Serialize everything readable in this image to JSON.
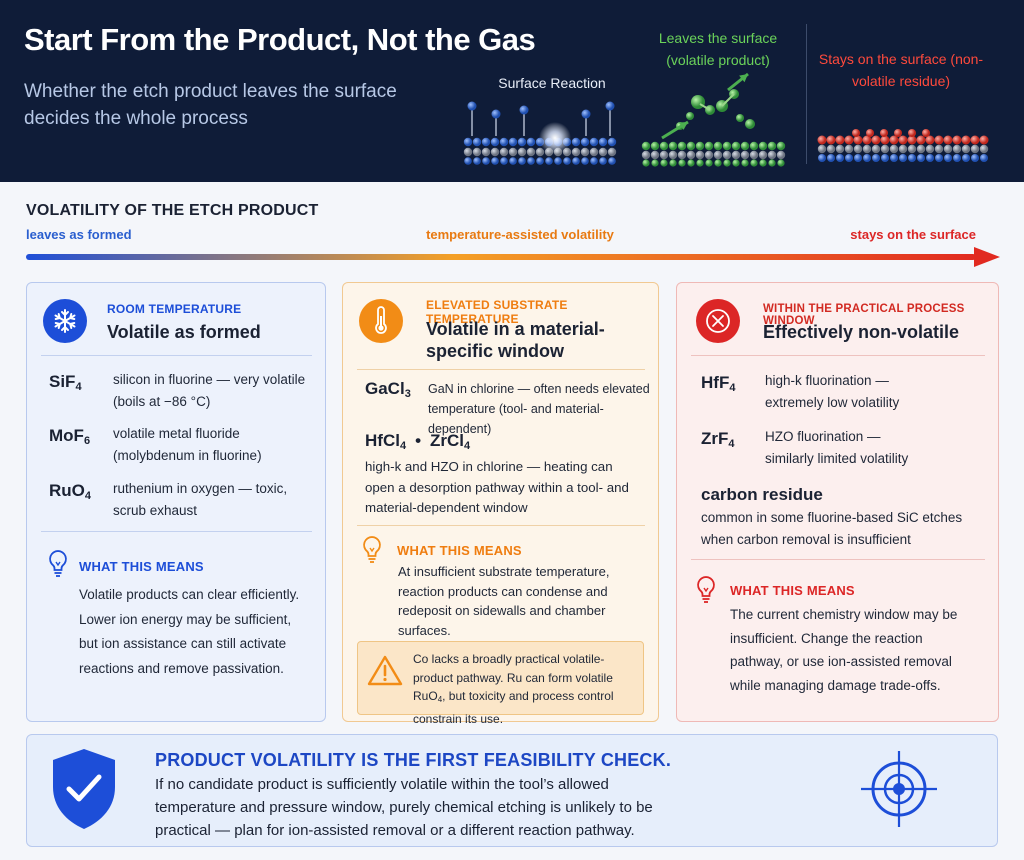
{
  "header": {
    "title": "Start From the Product, Not the Gas",
    "subtitle": "Whether the etch product leaves the surface decides the whole process",
    "illustrations": [
      {
        "caption": "Surface Reaction"
      },
      {
        "caption": "Leaves the surface (volatile product)"
      },
      {
        "caption": "Stays on the surface (non-volatile residue)"
      }
    ]
  },
  "scale": {
    "title": "VOLATILITY OF THE ETCH PRODUCT",
    "left_label": "leaves as formed",
    "mid_label": "temperature-assisted volatility",
    "right_label": "stays on the surface"
  },
  "cards": [
    {
      "icon": "snowflake-icon",
      "kicker": "ROOM TEMPERATURE",
      "title": "Volatile as formed",
      "products": [
        {
          "base": "SiF",
          "sub": "4",
          "desc": "silicon in fluorine — very volatile (boils at −86 °C)"
        },
        {
          "base": "MoF",
          "sub": "6",
          "desc": "volatile metal fluoride (molybdenum in fluorine)"
        },
        {
          "base": "RuO",
          "sub": "4",
          "desc": "ruthenium in oxygen — toxic, scrub exhaust"
        }
      ],
      "what_title": "WHAT THIS MEANS",
      "what_body": "Volatile products can clear efficiently. Lower ion energy may be sufficient, but ion assistance can still activate reactions and remove passivation."
    },
    {
      "icon": "thermometer-icon",
      "kicker": "ELEVATED SUBSTRATE TEMPERATURE",
      "title": "Volatile in a material-specific window",
      "products": [
        {
          "base": "GaCl",
          "sub": "3",
          "desc": "GaN in chlorine — often needs elevated temperature (tool- and material-dependent)"
        },
        {
          "base": "HfCl",
          "sub": "4",
          "sep": "•",
          "base2": "ZrCl",
          "sub2": "4",
          "desc": "high-k and HZO in chlorine — heating can open a desorption pathway within a tool- and material-dependent window"
        }
      ],
      "what_title": "WHAT THIS MEANS",
      "what_body": "At insufficient substrate temperature, reaction products can condense and redeposit on sidewalls and chamber surfaces.",
      "note": {
        "icon": "warning-icon",
        "pre": "Co lacks a broadly practical volatile-product pathway. Ru can form volatile RuO",
        "sub": "4",
        "post": ", but toxicity and process control constrain its use."
      }
    },
    {
      "icon": "no-symbol-icon",
      "kicker": "WITHIN THE PRACTICAL PROCESS WINDOW",
      "title": "Effectively non-volatile",
      "products": [
        {
          "base": "HfF",
          "sub": "4",
          "desc": "high-k fluorination — extremely low volatility"
        },
        {
          "base": "ZrF",
          "sub": "4",
          "desc": "HZO fluorination — similarly limited volatility"
        },
        {
          "base": "carbon residue",
          "sub": "",
          "desc": "common in some fluorine-based SiC etches when carbon removal is insufficient"
        }
      ],
      "what_title": "WHAT THIS MEANS",
      "what_body": "The current chemistry window may be insufficient. Change the reaction pathway, or use ion-assisted removal while managing damage trade-offs."
    }
  ],
  "bottom": {
    "icon": "shield-check-icon",
    "title": "PRODUCT VOLATILITY IS THE FIRST FEASIBILITY CHECK.",
    "body": "If no candidate product is sufficiently volatile within the tool’s allowed temperature and pressure window, purely chemical etching is unlikely to be practical — plan for ion-assisted removal or a different reaction pathway.",
    "target_icon": "target-icon"
  },
  "colors": {
    "header_bg": "#0f1c38",
    "blue": "#1d4ed8",
    "orange": "#f28c16",
    "red": "#dc2626",
    "green": "#4caf50"
  }
}
